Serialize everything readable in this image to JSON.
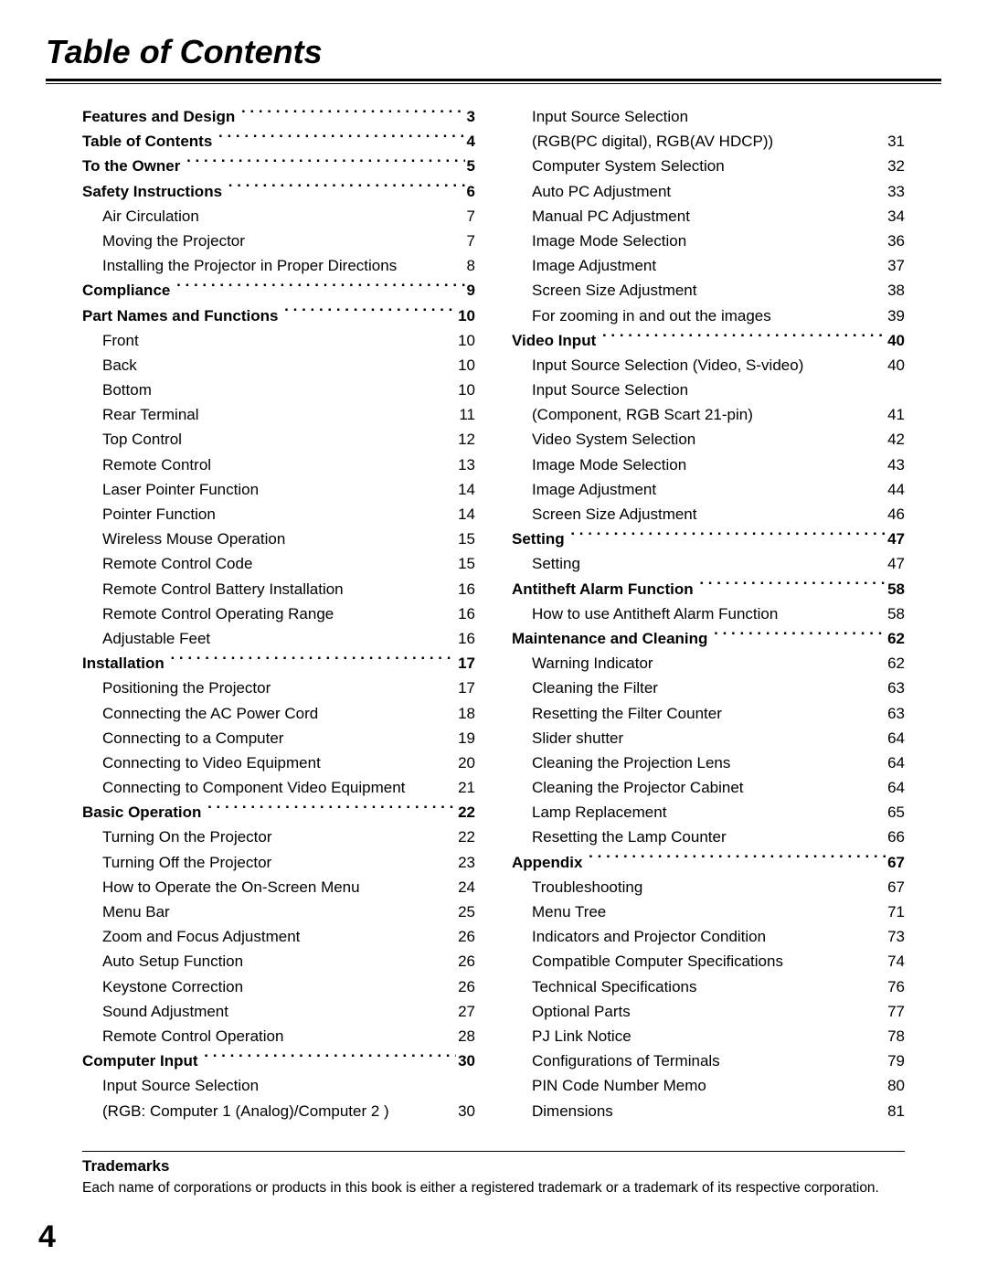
{
  "title": "Table of Contents",
  "columns": [
    [
      {
        "type": "section",
        "label": "Features and Design",
        "page": "3"
      },
      {
        "type": "section",
        "label": "Table of Contents",
        "page": "4"
      },
      {
        "type": "section",
        "label": "To the Owner",
        "page": "5"
      },
      {
        "type": "section",
        "label": "Safety Instructions",
        "page": "6"
      },
      {
        "type": "sub",
        "label": "Air Circulation",
        "page": "7"
      },
      {
        "type": "sub",
        "label": "Moving the Projector",
        "page": "7"
      },
      {
        "type": "sub",
        "label": "Installing the Projector in Proper Directions",
        "page": "8"
      },
      {
        "type": "section",
        "label": "Compliance",
        "page": "9"
      },
      {
        "type": "section",
        "label": "Part Names and Functions",
        "page": "10"
      },
      {
        "type": "sub",
        "label": "Front",
        "page": "10"
      },
      {
        "type": "sub",
        "label": "Back",
        "page": "10"
      },
      {
        "type": "sub",
        "label": "Bottom",
        "page": "10"
      },
      {
        "type": "sub",
        "label": "Rear Terminal",
        "page": "11"
      },
      {
        "type": "sub",
        "label": "Top Control",
        "page": "12"
      },
      {
        "type": "sub",
        "label": "Remote Control",
        "page": "13"
      },
      {
        "type": "sub",
        "label": "Laser Pointer Function",
        "page": "14"
      },
      {
        "type": "sub",
        "label": "Pointer Function",
        "page": "14"
      },
      {
        "type": "sub",
        "label": "Wireless Mouse Operation",
        "page": "15"
      },
      {
        "type": "sub",
        "label": "Remote Control Code",
        "page": "15"
      },
      {
        "type": "sub",
        "label": "Remote Control Battery Installation",
        "page": "16"
      },
      {
        "type": "sub",
        "label": "Remote Control Operating Range",
        "page": "16"
      },
      {
        "type": "sub",
        "label": "Adjustable Feet",
        "page": "16"
      },
      {
        "type": "section",
        "label": "Installation",
        "page": "17"
      },
      {
        "type": "sub",
        "label": "Positioning the Projector",
        "page": "17"
      },
      {
        "type": "sub",
        "label": "Connecting the AC Power Cord",
        "page": "18"
      },
      {
        "type": "sub",
        "label": "Connecting to a Computer",
        "page": "19"
      },
      {
        "type": "sub",
        "label": "Connecting to Video Equipment",
        "page": "20"
      },
      {
        "type": "sub",
        "label": "Connecting to Component Video Equipment",
        "page": "21"
      },
      {
        "type": "section",
        "label": "Basic Operation",
        "page": "22"
      },
      {
        "type": "sub",
        "label": "Turning On the Projector",
        "page": "22"
      },
      {
        "type": "sub",
        "label": "Turning Off the Projector",
        "page": "23"
      },
      {
        "type": "sub",
        "label": "How to Operate the On-Screen Menu",
        "page": "24"
      },
      {
        "type": "sub",
        "label": "Menu Bar",
        "page": "25"
      },
      {
        "type": "sub",
        "label": "Zoom and Focus Adjustment",
        "page": "26"
      },
      {
        "type": "sub",
        "label": "Auto Setup Function",
        "page": "26"
      },
      {
        "type": "sub",
        "label": "Keystone Correction",
        "page": "26"
      },
      {
        "type": "sub",
        "label": "Sound Adjustment",
        "page": "27"
      },
      {
        "type": "sub",
        "label": "Remote Control Operation",
        "page": "28"
      },
      {
        "type": "section",
        "label": "Computer Input",
        "page": "30"
      },
      {
        "type": "sub",
        "label": "Input Source Selection",
        "page": ""
      },
      {
        "type": "cont",
        "label": "(RGB: Computer 1 (Analog)/Computer 2 )",
        "page": "30"
      }
    ],
    [
      {
        "type": "sub",
        "label": "Input Source Selection",
        "page": ""
      },
      {
        "type": "cont",
        "label": "(RGB(PC digital), RGB(AV HDCP))",
        "page": "31"
      },
      {
        "type": "sub",
        "label": "Computer System Selection",
        "page": "32"
      },
      {
        "type": "sub",
        "label": "Auto PC Adjustment",
        "page": "33"
      },
      {
        "type": "sub",
        "label": "Manual PC Adjustment",
        "page": "34"
      },
      {
        "type": "sub",
        "label": "Image Mode Selection",
        "page": "36"
      },
      {
        "type": "sub",
        "label": "Image Adjustment",
        "page": "37"
      },
      {
        "type": "sub",
        "label": "Screen Size Adjustment",
        "page": "38"
      },
      {
        "type": "sub",
        "label": "For zooming in and out the images",
        "page": "39"
      },
      {
        "type": "section",
        "label": "Video Input",
        "page": "40"
      },
      {
        "type": "sub",
        "label": "Input Source Selection (Video, S-video)",
        "page": "40"
      },
      {
        "type": "sub",
        "label": "Input Source Selection",
        "page": ""
      },
      {
        "type": "cont",
        "label": "(Component, RGB Scart 21-pin)",
        "page": "41"
      },
      {
        "type": "sub",
        "label": "Video System Selection",
        "page": "42"
      },
      {
        "type": "sub",
        "label": "Image Mode Selection",
        "page": "43"
      },
      {
        "type": "sub",
        "label": "Image Adjustment",
        "page": "44"
      },
      {
        "type": "sub",
        "label": "Screen Size Adjustment",
        "page": "46"
      },
      {
        "type": "section",
        "label": "Setting",
        "page": "47"
      },
      {
        "type": "sub",
        "label": "Setting",
        "page": "47"
      },
      {
        "type": "section",
        "label": "Antitheft Alarm Function",
        "page": "58"
      },
      {
        "type": "sub",
        "label": "How to use Antitheft Alarm Function",
        "page": "58"
      },
      {
        "type": "section",
        "label": "Maintenance and Cleaning",
        "page": "62"
      },
      {
        "type": "sub",
        "label": "Warning Indicator",
        "page": "62"
      },
      {
        "type": "sub",
        "label": "Cleaning the Filter",
        "page": "63"
      },
      {
        "type": "sub",
        "label": "Resetting the Filter Counter",
        "page": "63"
      },
      {
        "type": "sub",
        "label": "Slider shutter",
        "page": "64"
      },
      {
        "type": "sub",
        "label": "Cleaning the Projection Lens",
        "page": "64"
      },
      {
        "type": "sub",
        "label": "Cleaning the Projector Cabinet",
        "page": "64"
      },
      {
        "type": "sub",
        "label": "Lamp Replacement",
        "page": "65"
      },
      {
        "type": "sub",
        "label": "Resetting the Lamp Counter",
        "page": "66"
      },
      {
        "type": "section",
        "label": "Appendix",
        "page": "67"
      },
      {
        "type": "sub",
        "label": "Troubleshooting",
        "page": "67"
      },
      {
        "type": "sub",
        "label": "Menu Tree",
        "page": "71"
      },
      {
        "type": "sub",
        "label": "Indicators and Projector Condition",
        "page": "73"
      },
      {
        "type": "sub",
        "label": "Compatible Computer Specifications",
        "page": "74"
      },
      {
        "type": "sub",
        "label": "Technical Specifications",
        "page": "76"
      },
      {
        "type": "sub",
        "label": "Optional Parts",
        "page": "77"
      },
      {
        "type": "sub",
        "label": "PJ Link Notice",
        "page": "78"
      },
      {
        "type": "sub",
        "label": "Configurations of Terminals",
        "page": "79"
      },
      {
        "type": "sub",
        "label": "PIN Code Number Memo",
        "page": "80"
      },
      {
        "type": "sub",
        "label": "Dimensions",
        "page": "81"
      }
    ]
  ],
  "footer": {
    "heading": "Trademarks",
    "text": "Each name of corporations or products in this book is either a registered trademark or a trademark of its respective corporation."
  },
  "page_number": "4"
}
